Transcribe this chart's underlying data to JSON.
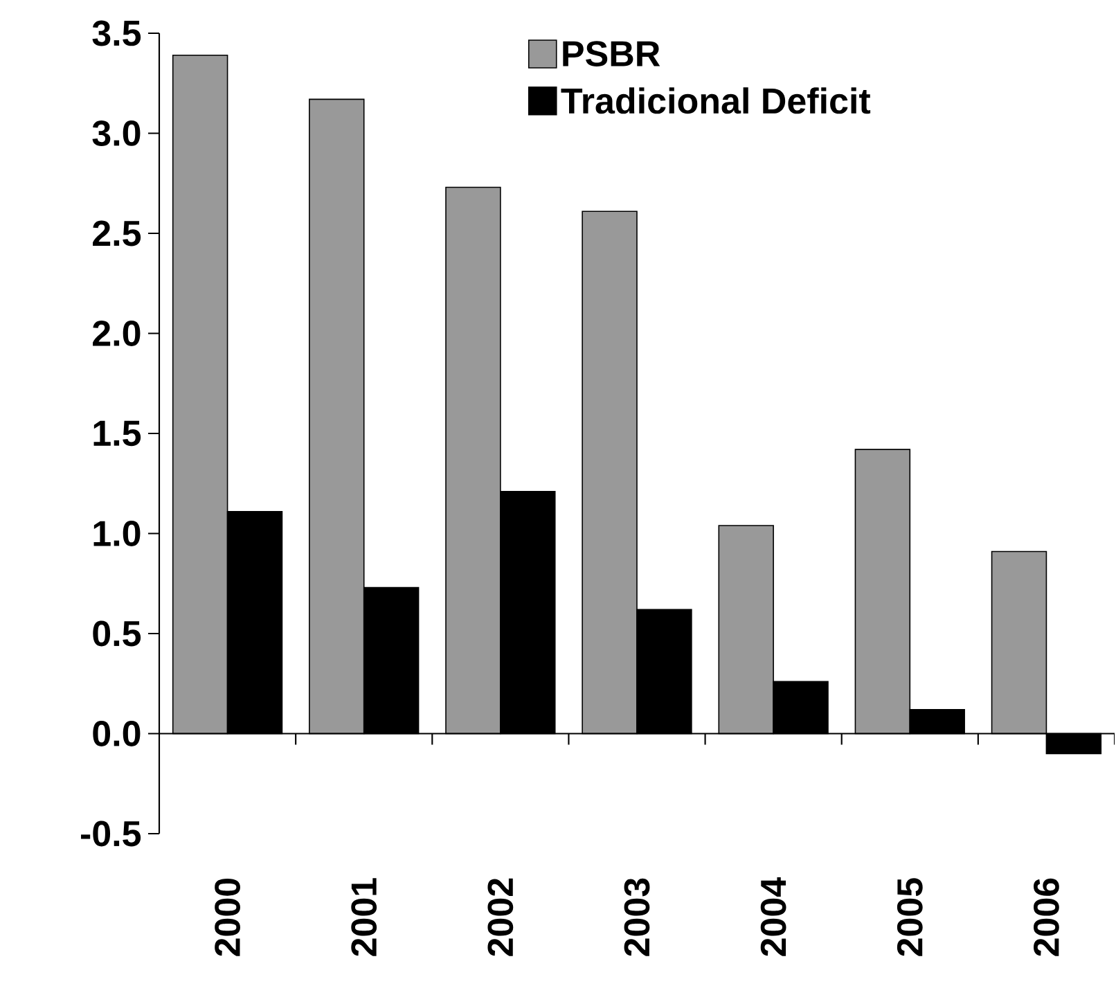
{
  "chart_data": {
    "type": "bar",
    "categories": [
      "2000",
      "2001",
      "2002",
      "2003",
      "2004",
      "2005",
      "2006"
    ],
    "series": [
      {
        "name": "PSBR",
        "color": "#999999",
        "values": [
          3.39,
          3.17,
          2.73,
          2.61,
          1.04,
          1.42,
          0.91
        ]
      },
      {
        "name": "Tradicional Deficit",
        "color": "#000000",
        "values": [
          1.11,
          0.73,
          1.21,
          0.62,
          0.26,
          0.12,
          -0.1
        ]
      }
    ],
    "ylim": [
      -0.5,
      3.5
    ],
    "yticks": [
      {
        "value": -0.5,
        "label": "-0.5"
      },
      {
        "value": 0,
        "label": "0.0"
      },
      {
        "value": 0.5,
        "label": "0.5"
      },
      {
        "value": 1,
        "label": "1.0"
      },
      {
        "value": 1.5,
        "label": "1.5"
      },
      {
        "value": 2,
        "label": "2.0"
      },
      {
        "value": 2.5,
        "label": "2.5"
      },
      {
        "value": 3,
        "label": "3.0"
      },
      {
        "value": 3.5,
        "label": "3.5"
      }
    ],
    "legend": "top right"
  }
}
